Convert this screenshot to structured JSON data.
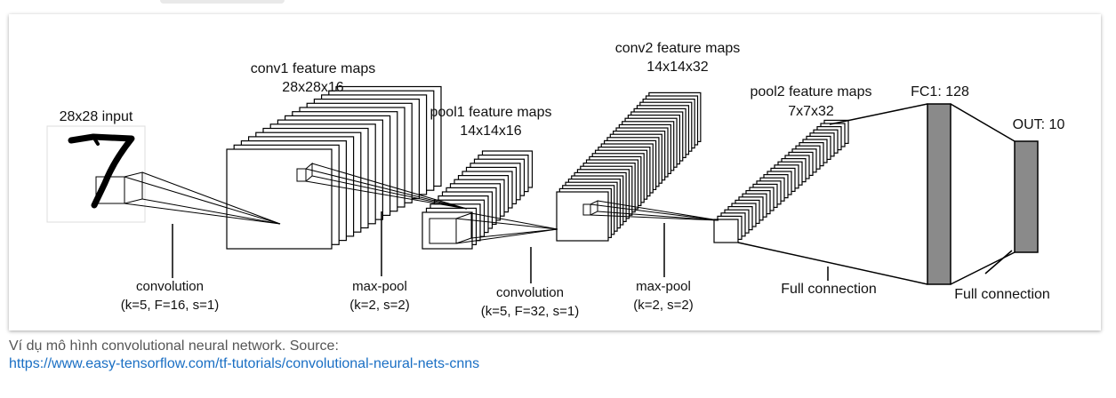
{
  "diagram": {
    "input_label": "28x28 input",
    "conv1": {
      "title": "conv1 feature maps",
      "size": "28x28x16"
    },
    "pool1": {
      "title": "pool1 feature maps",
      "size": "14x14x16"
    },
    "conv2": {
      "title": "conv2 feature maps",
      "size": "14x14x32"
    },
    "pool2": {
      "title": "pool2 feature maps",
      "size": "7x7x32"
    },
    "fc1": "FC1: 128",
    "out": "OUT: 10",
    "op_conv1": {
      "name": "convolution",
      "params": "(k=5, F=16, s=1)"
    },
    "op_pool1": {
      "name": "max-pool",
      "params": "(k=2, s=2)"
    },
    "op_conv2": {
      "name": "convolution",
      "params": "(k=5, F=32, s=1)"
    },
    "op_pool2": {
      "name": "max-pool",
      "params": "(k=2, s=2)"
    },
    "op_fc1": "Full connection",
    "op_fc2": "Full connection",
    "colors": {
      "fc_fill": "#8a8a8a",
      "stroke": "#000000"
    }
  },
  "caption": {
    "text": "Ví dụ mô hình convolutional neural network. Source:",
    "link": "https://www.easy-tensorflow.com/tf-tutorials/convolutional-neural-nets-cnns"
  }
}
